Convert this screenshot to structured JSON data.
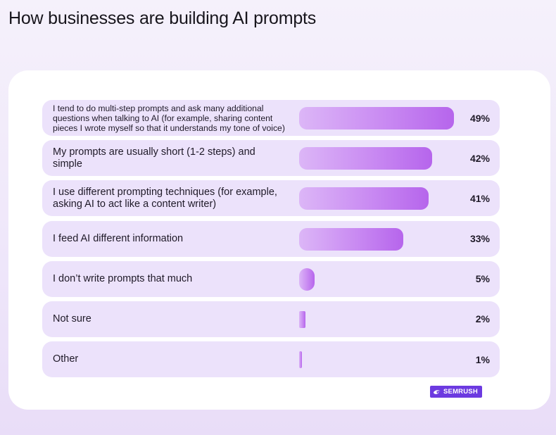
{
  "page": {
    "title": "How businesses are building AI prompts"
  },
  "brand": {
    "name": "SEMRUSH",
    "icon": "semrush-logo-icon",
    "color": "#6c3ae0"
  },
  "colors": {
    "row_background": "#ece2fb",
    "bar_start": "#dcb6f7",
    "bar_end": "#b665ec"
  },
  "chart_data": {
    "type": "bar",
    "orientation": "horizontal",
    "title": "How businesses are building AI prompts",
    "categories": [
      "I tend to do multi-step prompts and ask many additional questions when talking to AI (for example, sharing content pieces I wrote myself so that it understands my tone of voice)",
      "My prompts are usually short (1-2 steps) and simple",
      "I use different prompting techniques (for example, asking AI to act like a content writer)",
      "I feed AI different information",
      "I don’t write prompts that much",
      "Not sure",
      "Other"
    ],
    "values": [
      49,
      42,
      41,
      33,
      5,
      2,
      1
    ],
    "value_labels": [
      "49%",
      "42%",
      "41%",
      "33%",
      "5%",
      "2%",
      "1%"
    ],
    "unit": "%",
    "xlim": [
      0,
      49
    ],
    "grid": false,
    "legend": "none"
  }
}
